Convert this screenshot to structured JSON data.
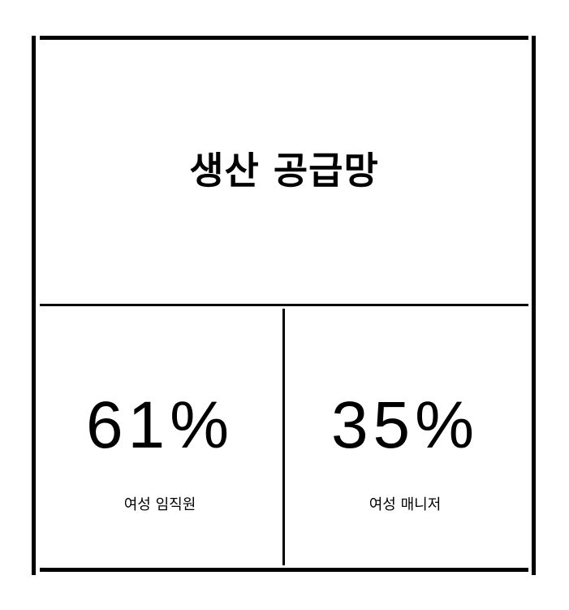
{
  "card": {
    "title": "생산 공급망",
    "stats": [
      {
        "value": "61%",
        "label": "여성 임직원"
      },
      {
        "value": "35%",
        "label": "여성 매니저"
      }
    ]
  },
  "colors": {
    "background": "#ffffff",
    "foreground": "#000000"
  }
}
